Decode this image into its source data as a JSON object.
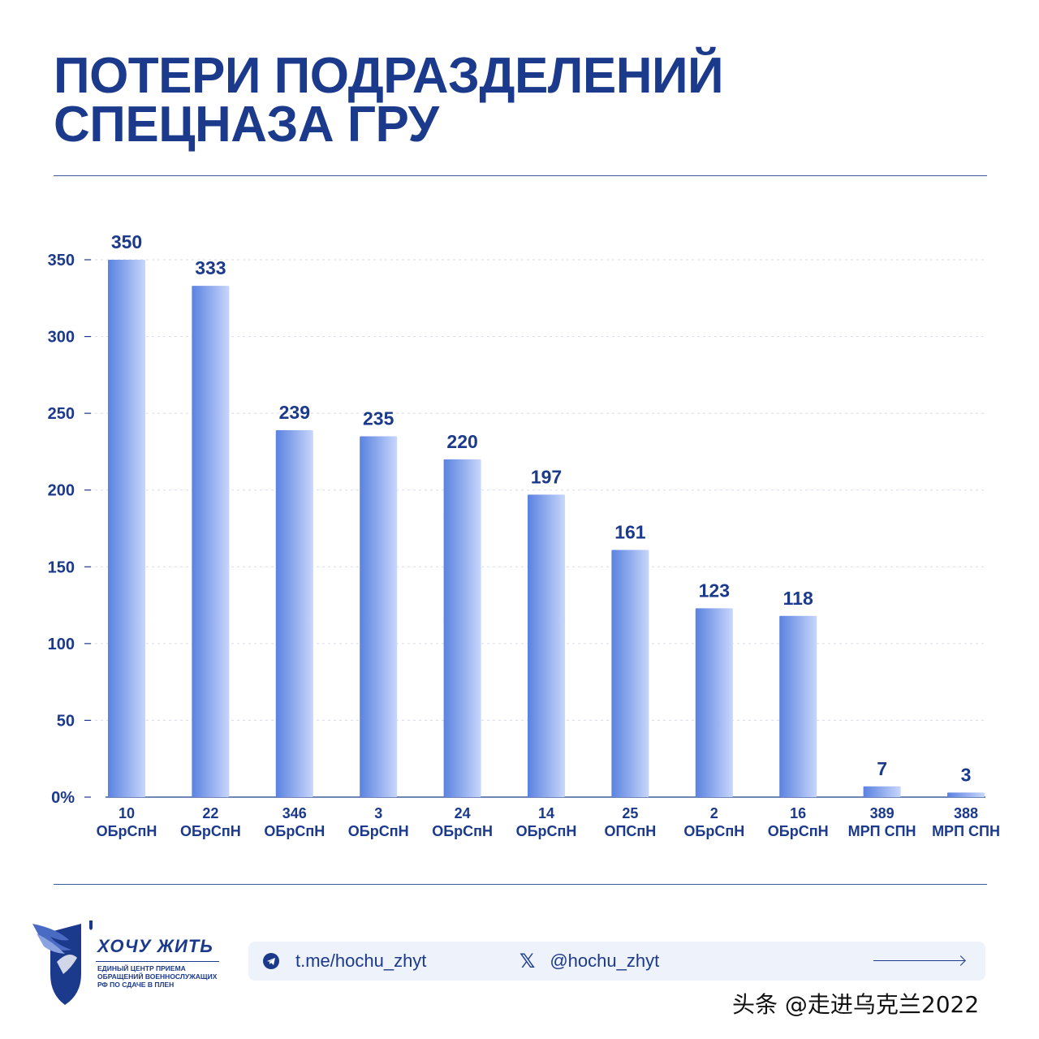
{
  "header": {
    "title_line1": "ПОТЕРИ ПОДРАЗДЕЛЕНИЙ",
    "title_line2": "СПЕЦНАЗА ГРУ"
  },
  "chart_data": {
    "type": "bar",
    "title": "ПОТЕРИ ПОДРАЗДЕЛЕНИЙ СПЕЦНАЗА ГРУ",
    "xlabel": "",
    "ylabel": "",
    "ylim": [
      0,
      350
    ],
    "yticks": [
      0,
      50,
      100,
      150,
      200,
      250,
      300,
      350
    ],
    "ytick_labels": [
      "0%",
      "50",
      "100",
      "150",
      "200",
      "250",
      "300",
      "350"
    ],
    "grid": true,
    "categories": [
      [
        "10",
        "ОБрСпН"
      ],
      [
        "22",
        "ОБрСпН"
      ],
      [
        "346",
        "ОБрСпН"
      ],
      [
        "3",
        "ОБрСпН"
      ],
      [
        "24",
        "ОБрСпН"
      ],
      [
        "14",
        "ОБрСпН"
      ],
      [
        "25",
        "ОПСпН"
      ],
      [
        "2",
        "ОБрСпН"
      ],
      [
        "16",
        "ОБрСпН"
      ],
      [
        "389",
        "МРП СПН"
      ],
      [
        "388",
        "МРП СПН"
      ]
    ],
    "values": [
      350,
      333,
      239,
      235,
      220,
      197,
      161,
      123,
      118,
      7,
      3
    ]
  },
  "footer": {
    "brand_name": "ХОЧУ ЖИТЬ",
    "brand_sub": [
      "ЕДИНЫЙ ЦЕНТР ПРИЕМА",
      "ОБРАЩЕНИЙ ВОЕННОСЛУЖАЩИХ",
      "РФ ПО СДАЧЕ В ПЛЕН"
    ],
    "telegram": "t.me/hochu_zhyt",
    "x_handle": "@hochu_zhyt",
    "x_glyph": "𝕏",
    "watermark": "头条 @走进乌克兰2022"
  },
  "colors": {
    "accent": "#1c3a8c",
    "bar_dark": "#5a82e0",
    "bar_light": "#c8d6fb",
    "grid": "#d6dbe6"
  }
}
